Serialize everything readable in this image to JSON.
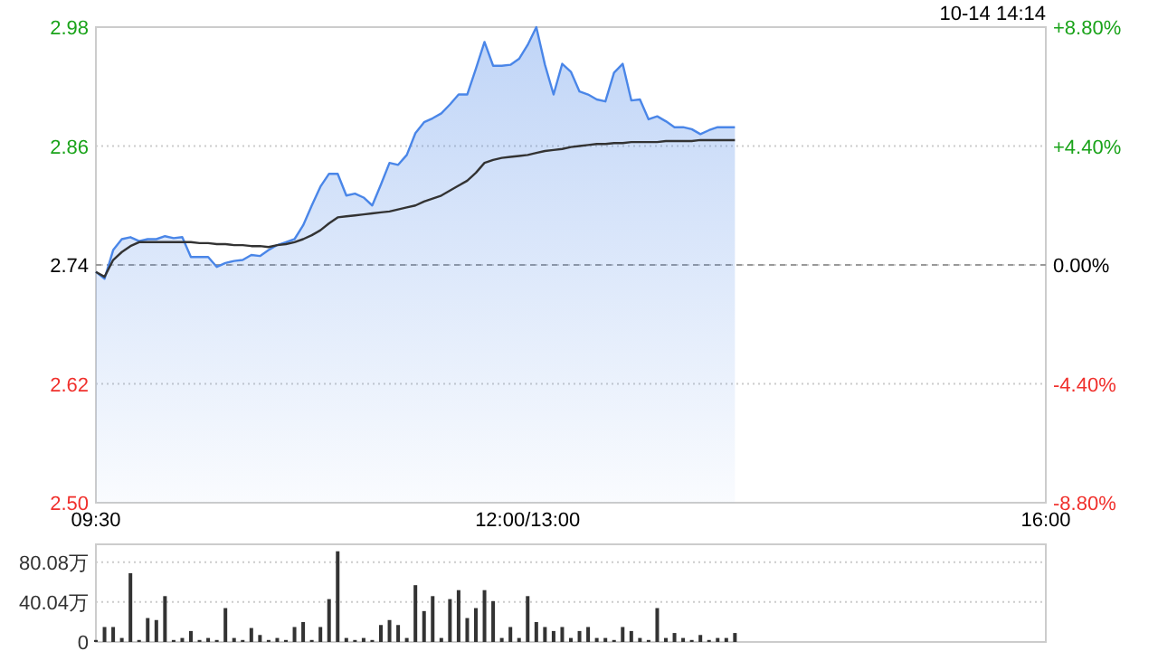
{
  "chart_data": [
    {
      "type": "line",
      "annotations": [
        "10-14 14:14"
      ],
      "categories": [
        "09:30",
        null,
        null,
        null,
        null,
        null,
        null,
        null,
        null,
        null,
        null,
        null,
        null,
        null,
        null,
        null,
        null,
        null,
        null,
        null,
        null,
        null,
        null,
        null,
        null,
        null,
        null,
        null,
        null,
        null,
        null,
        null,
        null,
        null,
        null,
        null,
        null,
        null,
        null,
        null,
        null,
        null,
        null,
        null,
        null,
        null,
        null,
        null,
        null,
        null,
        "12:00/13:00",
        null,
        null,
        null,
        null,
        null,
        null,
        null,
        null,
        null,
        null,
        null,
        null,
        null,
        null,
        null,
        null,
        null,
        null,
        null,
        null,
        null,
        null,
        null,
        null,
        null,
        null,
        null,
        null,
        null,
        null,
        null,
        null,
        null,
        null,
        null,
        null,
        null,
        null,
        null,
        null,
        null,
        null,
        null,
        null,
        null,
        null,
        null,
        null,
        null,
        null,
        null,
        null,
        null,
        null,
        null,
        null,
        null,
        null,
        null,
        "16:00"
      ],
      "ylim": [
        2.5,
        2.98
      ],
      "yticks": [
        {
          "value": 2.5,
          "label": "2.50"
        },
        2.62,
        2.74,
        2.86,
        2.98
      ],
      "y2lim": [
        -8.8,
        8.8
      ],
      "y2ticks": [
        {
          "value": -8.8,
          "label": "-8.80%"
        },
        {
          "value": -4.4,
          "label": "-4.40%"
        },
        {
          "value": 0,
          "label": "0.00%"
        },
        {
          "value": 4.4,
          "label": "+4.40%"
        },
        {
          "value": 8.8,
          "label": "+8.80%"
        }
      ],
      "grid": "y",
      "ref_lines": [
        {
          "axis": "y",
          "value": 2.74,
          "color": "#999999",
          "line_style": "dashed"
        }
      ],
      "series": [
        {
          "type": "area",
          "color": "#4a86e8",
          "values": [
            2.733,
            2.726,
            2.755,
            2.766,
            2.768,
            2.764,
            2.766,
            2.766,
            2.769,
            2.767,
            2.768,
            2.748,
            2.748,
            2.748,
            2.738,
            2.742,
            2.744,
            2.745,
            2.75,
            2.749,
            2.755,
            2.76,
            2.763,
            2.766,
            2.78,
            2.8,
            2.819,
            2.832,
            2.832,
            2.81,
            2.812,
            2.808,
            2.8,
            2.821,
            2.843,
            2.841,
            2.851,
            2.873,
            2.884,
            2.888,
            2.893,
            2.902,
            2.912,
            2.912,
            2.938,
            2.965,
            2.941,
            2.941,
            2.942,
            2.948,
            2.962,
            2.98,
            2.942,
            2.912,
            2.943,
            2.935,
            2.915,
            2.912,
            2.907,
            2.905,
            2.934,
            2.943,
            2.906,
            2.907,
            2.887,
            2.89,
            2.885,
            2.879,
            2.879,
            2.877,
            2.872,
            2.876,
            2.879,
            2.879,
            2.879,
            null,
            null,
            null,
            null,
            null,
            null,
            null,
            null,
            null,
            null,
            null,
            null,
            null,
            null,
            null,
            null,
            null,
            null,
            null,
            null,
            null,
            null,
            null,
            null,
            null,
            null,
            null,
            null,
            null,
            null,
            null,
            null,
            null,
            null,
            null,
            null
          ]
        },
        {
          "color": "#333333",
          "values": [
            2.733,
            2.728,
            2.745,
            2.753,
            2.759,
            2.763,
            2.763,
            2.763,
            2.763,
            2.763,
            2.763,
            2.763,
            2.762,
            2.762,
            2.761,
            2.761,
            2.76,
            2.76,
            2.759,
            2.759,
            2.758,
            2.76,
            2.761,
            2.763,
            2.766,
            2.77,
            2.775,
            2.782,
            2.788,
            2.789,
            2.79,
            2.791,
            2.792,
            2.793,
            2.794,
            2.796,
            2.798,
            2.8,
            2.804,
            2.807,
            2.81,
            2.815,
            2.82,
            2.825,
            2.833,
            2.843,
            2.846,
            2.848,
            2.849,
            2.85,
            2.851,
            2.853,
            2.855,
            2.856,
            2.857,
            2.859,
            2.86,
            2.861,
            2.862,
            2.862,
            2.863,
            2.863,
            2.864,
            2.864,
            2.864,
            2.864,
            2.865,
            2.865,
            2.865,
            2.865,
            2.866,
            2.866,
            2.866,
            2.866,
            2.866,
            null,
            null,
            null,
            null,
            null,
            null,
            null,
            null,
            null,
            null,
            null,
            null,
            null,
            null,
            null,
            null,
            null,
            null,
            null,
            null,
            null,
            null,
            null,
            null,
            null,
            null,
            null,
            null,
            null,
            null,
            null,
            null,
            null,
            null,
            null,
            null
          ]
        }
      ]
    },
    {
      "type": "bar",
      "ylim": [
        0,
        98
      ],
      "tick_labels": "y",
      "grid": "y",
      "categories": [
        null,
        null,
        null,
        null,
        null,
        null,
        null,
        null,
        null,
        null,
        null,
        null,
        null,
        null,
        null,
        null,
        null,
        null,
        null,
        null,
        null,
        null,
        null,
        null,
        null,
        null,
        null,
        null,
        null,
        null,
        null,
        null,
        null,
        null,
        null,
        null,
        null,
        null,
        null,
        null,
        null,
        null,
        null,
        null,
        null,
        null,
        null,
        null,
        null,
        null,
        null,
        null,
        null,
        null,
        null,
        null,
        null,
        null,
        null,
        null,
        null,
        null,
        null,
        null,
        null,
        null,
        null,
        null,
        null,
        null,
        null,
        null,
        null,
        null,
        null,
        null,
        null,
        null,
        null,
        null,
        null,
        null,
        null,
        null,
        null,
        null,
        null,
        null,
        null,
        null,
        null,
        null,
        null,
        null,
        null,
        null,
        null,
        null,
        null,
        null,
        null,
        null,
        null,
        null,
        null,
        null,
        null,
        null,
        null,
        null,
        null
      ],
      "yticks": [
        0,
        {
          "value": 40.04,
          "label": "40.04万"
        },
        {
          "value": 80.08,
          "label": "80.08万"
        }
      ],
      "series": [
        {
          "color": "#333333",
          "values": [
            2,
            15,
            15,
            4,
            69,
            2,
            24,
            22,
            46,
            2,
            4,
            11,
            2,
            4,
            2,
            34,
            4,
            2,
            14,
            7,
            2,
            4,
            2,
            15,
            20,
            2,
            15,
            43,
            91,
            4,
            2,
            4,
            2,
            17,
            22,
            17,
            4,
            57,
            31,
            46,
            4,
            43,
            52,
            24,
            34,
            52,
            41,
            4,
            15,
            4,
            46,
            20,
            15,
            11,
            15,
            4,
            11,
            15,
            4,
            4,
            2,
            15,
            11,
            4,
            2,
            34,
            4,
            9,
            4,
            2,
            7,
            2,
            4,
            4,
            9,
            null,
            null,
            null,
            null,
            null,
            null,
            null,
            null,
            null,
            null,
            null,
            null,
            null,
            null,
            null,
            null,
            null,
            null,
            null,
            null,
            null,
            null,
            null,
            null,
            null,
            null,
            null,
            null,
            null,
            null,
            null,
            null,
            null,
            null,
            null,
            null
          ]
        }
      ]
    }
  ]
}
